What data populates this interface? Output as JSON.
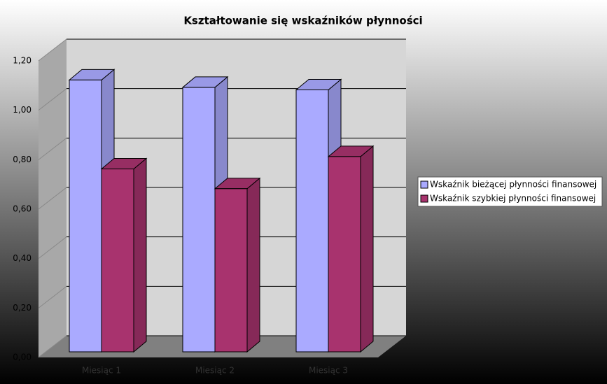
{
  "chart_data": {
    "type": "bar3d",
    "title": "Kształtowanie się wskaźników płynności",
    "categories": [
      "Miesiąc 1",
      "Miesiąc 2",
      "Miesiąc 3"
    ],
    "series": [
      {
        "name": "Wskaźnik bieżącej płynności finansowej",
        "color": "#aaaaff",
        "values": [
          1.1,
          1.07,
          1.06
        ]
      },
      {
        "name": "Wskaźnik szybkiej płynności finansowej",
        "color": "#a8336e",
        "values": [
          0.74,
          0.66,
          0.79
        ]
      }
    ],
    "ylim": [
      0,
      1.2
    ],
    "yticks": [
      {
        "value": 0,
        "label": "0,00"
      },
      {
        "value": 0.2,
        "label": "0,20"
      },
      {
        "value": 0.4,
        "label": "0,40"
      },
      {
        "value": 0.6,
        "label": "0,60"
      },
      {
        "value": 0.8,
        "label": "0,80"
      },
      {
        "value": 1,
        "label": "1,00"
      },
      {
        "value": 1.2,
        "label": "1,20"
      }
    ],
    "grid": true
  }
}
